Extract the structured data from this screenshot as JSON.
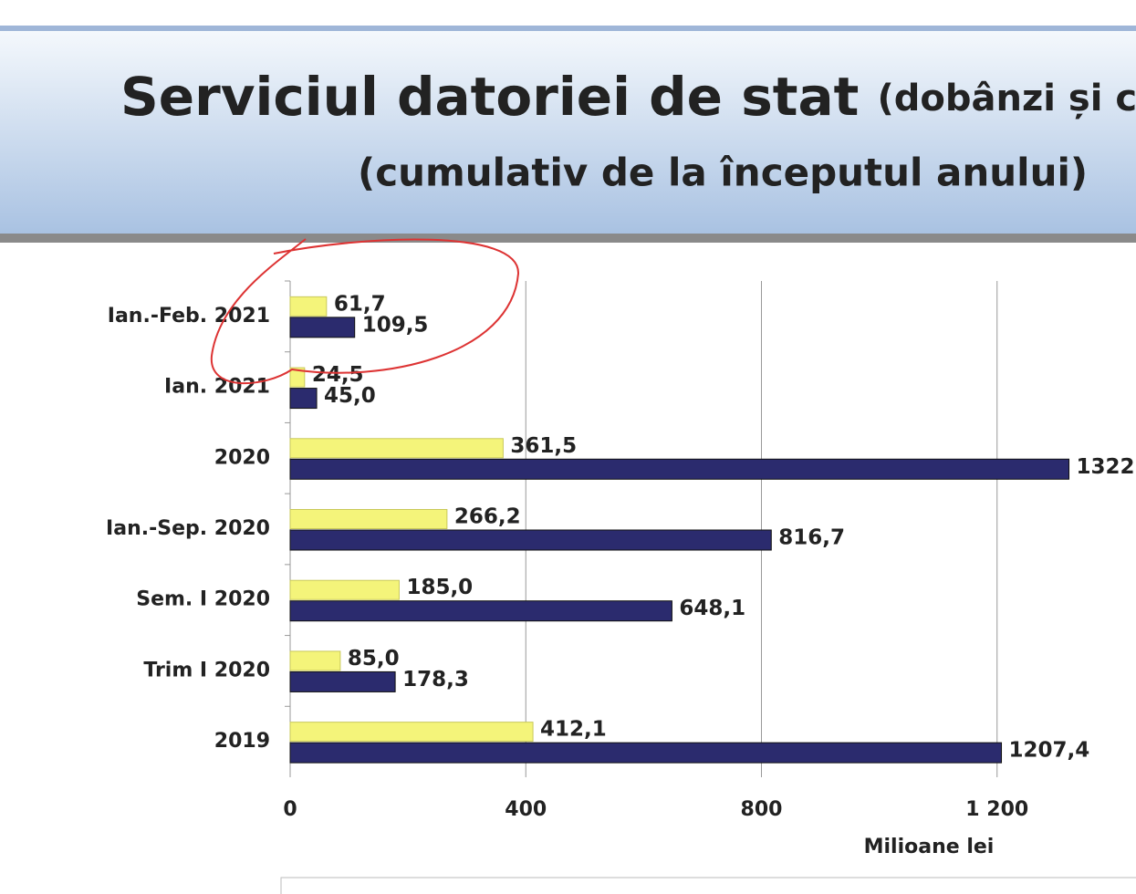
{
  "chart_data": {
    "type": "bar",
    "orientation": "horizontal",
    "title": "Serviciul datoriei de stat",
    "title_suffix": "(dobânzi și co",
    "subtitle": "(cumulativ de la începutul anului)",
    "x_label": "Milioane lei",
    "categories": [
      "Ian.-Feb. 2021",
      "Ian. 2021",
      "2020",
      "Ian.-Sep. 2020",
      "Sem. I 2020",
      "Trim I 2020",
      "2019"
    ],
    "series": [
      {
        "color": "#f4f47a",
        "values": [
          61.7,
          24.5,
          361.5,
          266.2,
          185.0,
          85.0,
          412.1
        ],
        "value_labels": [
          "61,7",
          "24,5",
          "361,5",
          "266,2",
          "185,0",
          "85,0",
          "412,1"
        ]
      },
      {
        "color": "#2b2b6e",
        "values": [
          109.5,
          45.0,
          1322,
          816.7,
          648.1,
          178.3,
          1207.4
        ],
        "value_labels": [
          "109,5",
          "45,0",
          "1322",
          "816,7",
          "648,1",
          "178,3",
          "1207,4"
        ]
      }
    ],
    "xlim": [
      0,
      1600
    ],
    "xticks": [
      0,
      400,
      800,
      {
        "value": 1200,
        "label": "1 200"
      }
    ],
    "grid": true
  }
}
